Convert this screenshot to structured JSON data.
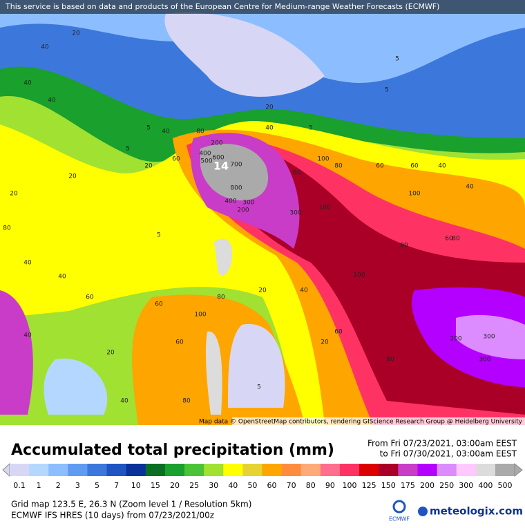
{
  "header": {
    "attribution": "This service is based on data and products of the European Centre for Medium-range Weather Forecasts (ECMWF)"
  },
  "map": {
    "credit": "Map data © OpenStreetMap contributors, rendering GIScience Research Group @ Heidelberg University",
    "storm_marker": "14",
    "labels": [
      "40",
      "20",
      "40",
      "40",
      "20",
      "5",
      "5",
      "20",
      "40",
      "80",
      "60",
      "40",
      "20",
      "5",
      "5",
      "5",
      "60",
      "40",
      "100",
      "60",
      "80",
      "60",
      "200",
      "400",
      "600",
      "500",
      "700",
      "800",
      "400",
      "300",
      "200",
      "300",
      "100",
      "100",
      "60",
      "40",
      "80",
      "80",
      "200",
      "300",
      "300",
      "100",
      "80",
      "60",
      "20",
      "40",
      "100",
      "60",
      "80",
      "60",
      "80",
      "40",
      "20",
      "5",
      "5",
      "20",
      "60",
      "40",
      "40",
      "80",
      "40",
      "20"
    ]
  },
  "title": "Accumulated total precipitation (mm)",
  "period": {
    "from": "From Fri 07/23/2021, 03:00am EEST",
    "to": "to Fri 07/30/2021, 03:00am EEST"
  },
  "legend": {
    "ticks": [
      0.1,
      1,
      2,
      3,
      5,
      7,
      10,
      15,
      20,
      25,
      30,
      40,
      50,
      60,
      70,
      80,
      90,
      100,
      125,
      150,
      175,
      200,
      250,
      300,
      400,
      500
    ],
    "colors": [
      "#d7d7f5",
      "#b4d7ff",
      "#8cbeff",
      "#5f9bf0",
      "#3c78dc",
      "#1e55c3",
      "#0a329b",
      "#0a6e23",
      "#19a02d",
      "#4bc337",
      "#a0e132",
      "#ffff00",
      "#e6d232",
      "#ffa500",
      "#ff8c3c",
      "#ffaa78",
      "#ff6e8c",
      "#ff3264",
      "#dc0000",
      "#aa0028",
      "#c83cc8",
      "#b400ff",
      "#dc8cff",
      "#ffc8ff",
      "#dcdcdc",
      "#aaaaaa"
    ]
  },
  "footer": {
    "grid": "Grid map 123.5 E, 26.3 N (Zoom level 1 / Resolution 5km)",
    "model": "ECMWF IFS HRES (10 days) from  07/23/2021/00z",
    "ecmwf_logo": "ECMWF",
    "brand": "meteologix.com"
  }
}
